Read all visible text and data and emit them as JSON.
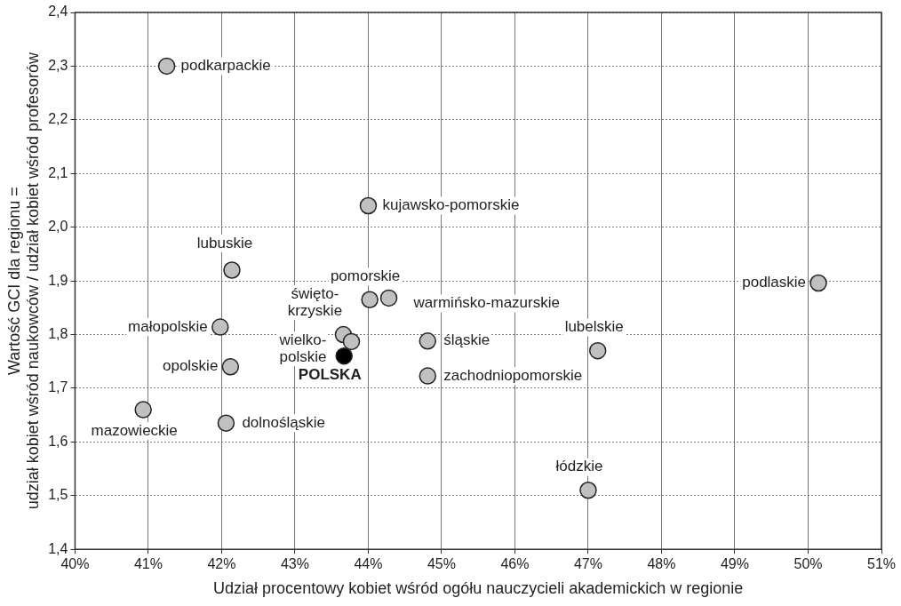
{
  "chart_data": {
    "type": "scatter",
    "xlabel": "Udział procentowy kobiet wśród ogółu nauczycieli akademickich w regionie",
    "ylabel": "Wartość GCI dla regionu =\nudział kobiet wśród naukowców / udział kobiet wśród profesorów",
    "series": [
      {
        "color": "#c0c0c0",
        "x": [
          41.25,
          44.0,
          42.14,
          44.02,
          43.66,
          44.28,
          50.14,
          41.98,
          44.81,
          47.13,
          43.77,
          42.12,
          44.81,
          40.93,
          42.06,
          47.0
        ],
        "values": [
          2.3,
          2.04,
          1.92,
          1.865,
          1.8,
          1.868,
          1.896,
          1.814,
          1.788,
          1.77,
          1.787,
          1.74,
          1.723,
          1.66,
          1.635,
          1.51
        ]
      },
      {
        "color": "#000000",
        "x": [
          43.67
        ],
        "values": [
          1.76
        ]
      }
    ],
    "xlim": [
      40,
      51
    ],
    "xticks": [
      {
        "value": 40,
        "label": "40%"
      },
      {
        "value": 41,
        "label": "41%"
      },
      {
        "value": 42,
        "label": "42%"
      },
      {
        "value": 43,
        "label": "43%"
      },
      {
        "value": 44,
        "label": "44%"
      },
      {
        "value": 45,
        "label": "45%"
      },
      {
        "value": 46,
        "label": "46%"
      },
      {
        "value": 47,
        "label": "47%"
      },
      {
        "value": 48,
        "label": "48%"
      },
      {
        "value": 49,
        "label": "49%"
      },
      {
        "value": 50,
        "label": "50%"
      },
      {
        "value": 51,
        "label": "51%"
      }
    ],
    "ylim": [
      1.4,
      2.4
    ],
    "yticks": [
      {
        "value": 1.4,
        "label": "1,4"
      },
      {
        "value": 1.5,
        "label": "1,5"
      },
      {
        "value": 1.6,
        "label": "1,6"
      },
      {
        "value": 1.7,
        "label": "1,7"
      },
      {
        "value": 1.8,
        "label": "1,8"
      },
      {
        "value": 1.9,
        "label": "1,9"
      },
      {
        "value": 2.0,
        "label": "2,0"
      },
      {
        "value": 2.1,
        "label": "2,1"
      },
      {
        "value": 2.2,
        "label": "2,2"
      },
      {
        "value": 2.3,
        "label": "2,3"
      },
      {
        "value": 2.4,
        "label": "2,4"
      }
    ],
    "grid": true,
    "marker": "circle",
    "annotations": [
      {
        "text": "podkarpackie",
        "x": 41.25,
        "y": 2.3
      },
      {
        "text": "kujawsko-pomorskie",
        "x": 44.0,
        "y": 2.04
      },
      {
        "text": "lubuskie",
        "x": 42.14,
        "y": 1.92
      },
      {
        "text": "pomorskie",
        "x": 44.02,
        "y": 1.865
      },
      {
        "text": "święto-\nkrzyskie",
        "x": 43.66,
        "y": 1.8
      },
      {
        "text": "warmińsko-mazurskie",
        "x": 44.28,
        "y": 1.868
      },
      {
        "text": "podlaskie",
        "x": 50.14,
        "y": 1.896
      },
      {
        "text": "małopolskie",
        "x": 41.98,
        "y": 1.814
      },
      {
        "text": "śląskie",
        "x": 44.81,
        "y": 1.788
      },
      {
        "text": "lubelskie",
        "x": 47.13,
        "y": 1.77
      },
      {
        "text": "wielko-\npolskie",
        "x": 43.77,
        "y": 1.787
      },
      {
        "text": "opolskie",
        "x": 42.12,
        "y": 1.74
      },
      {
        "text": "zachodniopomorskie",
        "x": 44.81,
        "y": 1.723
      },
      {
        "text": "POLSKA",
        "x": 43.67,
        "y": 1.76
      },
      {
        "text": "mazowieckie",
        "x": 40.93,
        "y": 1.66
      },
      {
        "text": "dolnośląskie",
        "x": 42.06,
        "y": 1.635
      },
      {
        "text": "łódzkie",
        "x": 47.0,
        "y": 1.51
      }
    ]
  }
}
